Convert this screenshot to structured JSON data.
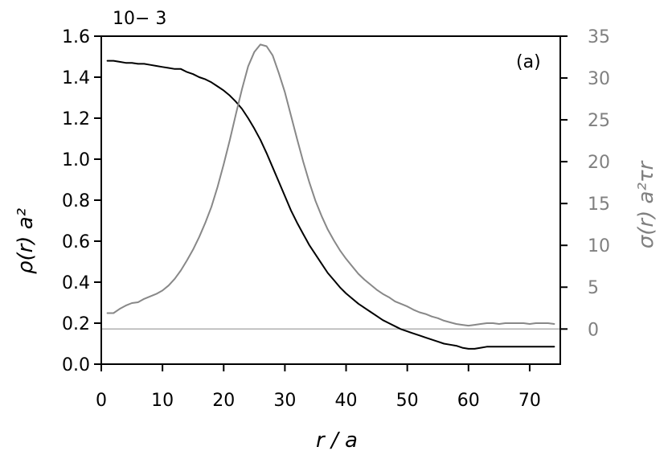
{
  "chart_data": {
    "type": "line",
    "panel_label": "(a)",
    "multiplier_label": "10− 3",
    "xlabel": "r / a",
    "ylabel_left": "ρ(r)   a²",
    "ylabel_right": "σ(r)   a²τr",
    "xlim": [
      0,
      75
    ],
    "ylim_left": [
      0.0,
      1.6
    ],
    "ylim_right": [
      -4.2,
      35
    ],
    "x_ticks": [
      0,
      10,
      20,
      30,
      40,
      50,
      60,
      70
    ],
    "x_tick_labels": [
      "0",
      "10",
      "20",
      "30",
      "40",
      "50",
      "60",
      "70"
    ],
    "y_left_ticks": [
      0.0,
      0.2,
      0.4,
      0.6,
      0.8,
      1.0,
      1.2,
      1.4,
      1.6
    ],
    "y_left_tick_labels": [
      "0.0",
      "0.2",
      "0.4",
      "0.6",
      "0.8",
      "1.0",
      "1.2",
      "1.4",
      "1.6"
    ],
    "y_right_ticks": [
      0,
      5,
      10,
      15,
      20,
      25,
      30,
      35
    ],
    "y_right_tick_labels": [
      "0",
      "5",
      "10",
      "15",
      "20",
      "25",
      "30",
      "35"
    ],
    "grid": false,
    "reference_line": {
      "axis": "right",
      "y": 0,
      "color": "#b0b0b0"
    },
    "series": [
      {
        "axis": "left",
        "color": "#000000",
        "x": [
          1,
          2,
          3,
          4,
          5,
          6,
          7,
          8,
          9,
          10,
          11,
          12,
          13,
          14,
          15,
          16,
          17,
          18,
          19,
          20,
          21,
          22,
          23,
          24,
          25,
          26,
          27,
          28,
          29,
          30,
          31,
          32,
          33,
          34,
          35,
          36,
          37,
          38,
          39,
          40,
          41,
          42,
          43,
          44,
          45,
          46,
          47,
          48,
          49,
          50,
          51,
          52,
          53,
          54,
          55,
          56,
          57,
          58,
          59,
          60,
          61,
          62,
          63,
          64,
          65,
          66,
          67,
          68,
          69,
          70,
          71,
          72,
          73,
          74
        ],
        "y": [
          1.48,
          1.48,
          1.475,
          1.47,
          1.47,
          1.465,
          1.465,
          1.46,
          1.455,
          1.45,
          1.445,
          1.44,
          1.44,
          1.425,
          1.415,
          1.4,
          1.39,
          1.375,
          1.355,
          1.335,
          1.31,
          1.28,
          1.245,
          1.2,
          1.15,
          1.095,
          1.03,
          0.96,
          0.89,
          0.82,
          0.75,
          0.69,
          0.635,
          0.58,
          0.535,
          0.49,
          0.445,
          0.41,
          0.375,
          0.345,
          0.32,
          0.295,
          0.275,
          0.255,
          0.235,
          0.215,
          0.2,
          0.185,
          0.17,
          0.16,
          0.15,
          0.14,
          0.13,
          0.12,
          0.11,
          0.1,
          0.095,
          0.09,
          0.08,
          0.075,
          0.075,
          0.08,
          0.085,
          0.085,
          0.085,
          0.085,
          0.085,
          0.085,
          0.085,
          0.085,
          0.085,
          0.085,
          0.085,
          0.085
        ]
      },
      {
        "axis": "right",
        "color": "#888888",
        "x": [
          1,
          2,
          3,
          4,
          5,
          6,
          7,
          8,
          9,
          10,
          11,
          12,
          13,
          14,
          15,
          16,
          17,
          18,
          19,
          20,
          21,
          22,
          23,
          24,
          25,
          26,
          27,
          28,
          29,
          30,
          31,
          32,
          33,
          34,
          35,
          36,
          37,
          38,
          39,
          40,
          41,
          42,
          43,
          44,
          45,
          46,
          47,
          48,
          49,
          50,
          51,
          52,
          53,
          54,
          55,
          56,
          57,
          58,
          59,
          60,
          61,
          62,
          63,
          64,
          65,
          66,
          67,
          68,
          69,
          70,
          71,
          72,
          73,
          74
        ],
        "y": [
          1.9,
          1.9,
          2.4,
          2.8,
          3.1,
          3.2,
          3.6,
          3.9,
          4.2,
          4.6,
          5.2,
          6.0,
          7.0,
          8.2,
          9.5,
          11.0,
          12.7,
          14.6,
          17.0,
          19.7,
          22.6,
          25.7,
          28.7,
          31.4,
          33.1,
          34.0,
          33.8,
          32.7,
          30.6,
          28.3,
          25.5,
          22.7,
          20.0,
          17.5,
          15.3,
          13.5,
          11.9,
          10.6,
          9.4,
          8.4,
          7.5,
          6.6,
          5.9,
          5.3,
          4.7,
          4.2,
          3.8,
          3.3,
          3.0,
          2.7,
          2.3,
          2.0,
          1.8,
          1.5,
          1.3,
          1.0,
          0.8,
          0.6,
          0.5,
          0.4,
          0.5,
          0.6,
          0.7,
          0.7,
          0.6,
          0.7,
          0.7,
          0.7,
          0.7,
          0.6,
          0.7,
          0.7,
          0.7,
          0.6
        ]
      }
    ]
  }
}
